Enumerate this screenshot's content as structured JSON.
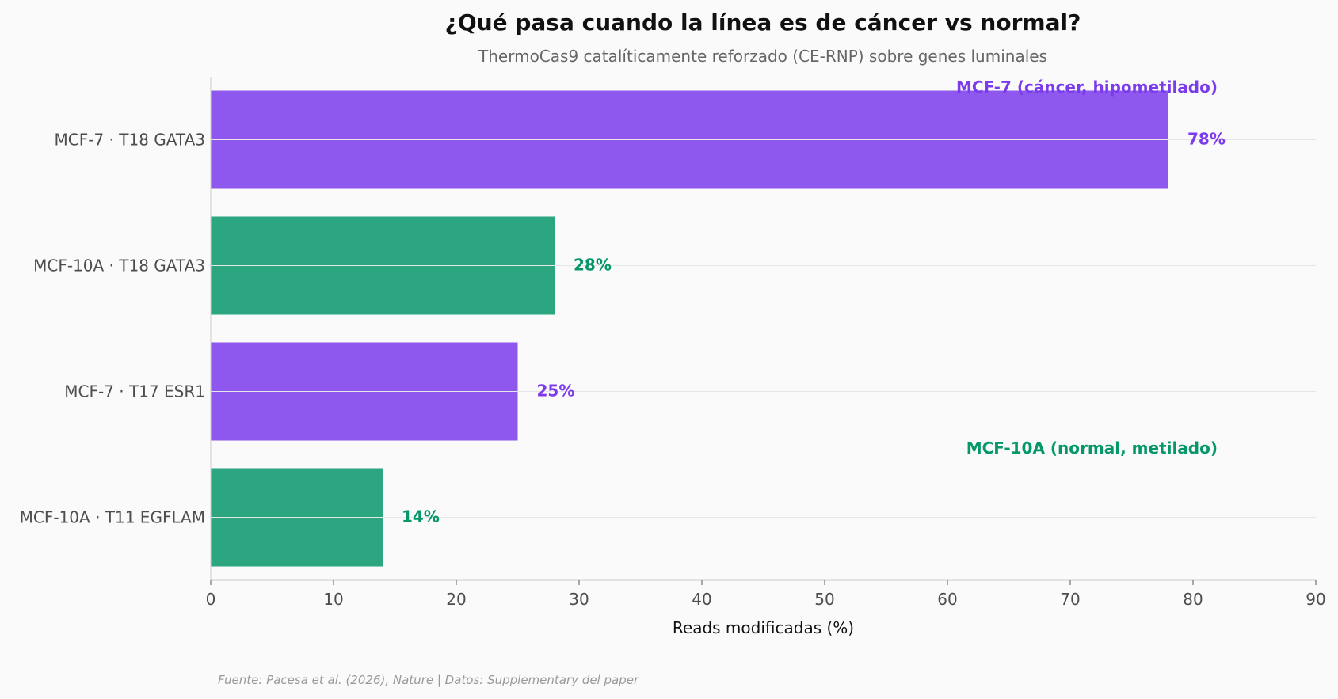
{
  "chart_data": {
    "type": "bar",
    "orientation": "horizontal",
    "title": "¿Qué pasa cuando la línea es de cáncer vs normal?",
    "subtitle": "ThermoCas9 catalíticamente reforzado (CE-RNP) sobre genes luminales",
    "xlabel": "Reads modificadas (%)",
    "ylabel": "",
    "xlim": [
      0,
      90
    ],
    "xticks": [
      0,
      10,
      20,
      30,
      40,
      50,
      60,
      70,
      80,
      90
    ],
    "grid": "horizontal lines through bar centers",
    "categories": [
      "MCF-7 · T18 GATA3",
      "MCF-10A · T18 GATA3",
      "MCF-7 · T17 ESR1",
      "MCF-10A · T11 EGFLAM"
    ],
    "values": [
      78,
      28,
      25,
      14
    ],
    "value_labels": [
      "78%",
      "28%",
      "25%",
      "14%"
    ],
    "groups": [
      "cancer",
      "normal",
      "cancer",
      "normal"
    ],
    "legend": {
      "placement": "right",
      "cancer": "MCF-7 (cáncer, hipometilado)",
      "normal": "MCF-10A (normal, metilado)"
    },
    "colors": {
      "cancer_bar": "#8e58ee",
      "cancer_text": "#7c3aed",
      "normal_bar": "#2ba680",
      "normal_text": "#059669"
    }
  },
  "source_note": "Fuente: Pacesa et al. (2026), Nature | Datos: Supplementary del paper"
}
